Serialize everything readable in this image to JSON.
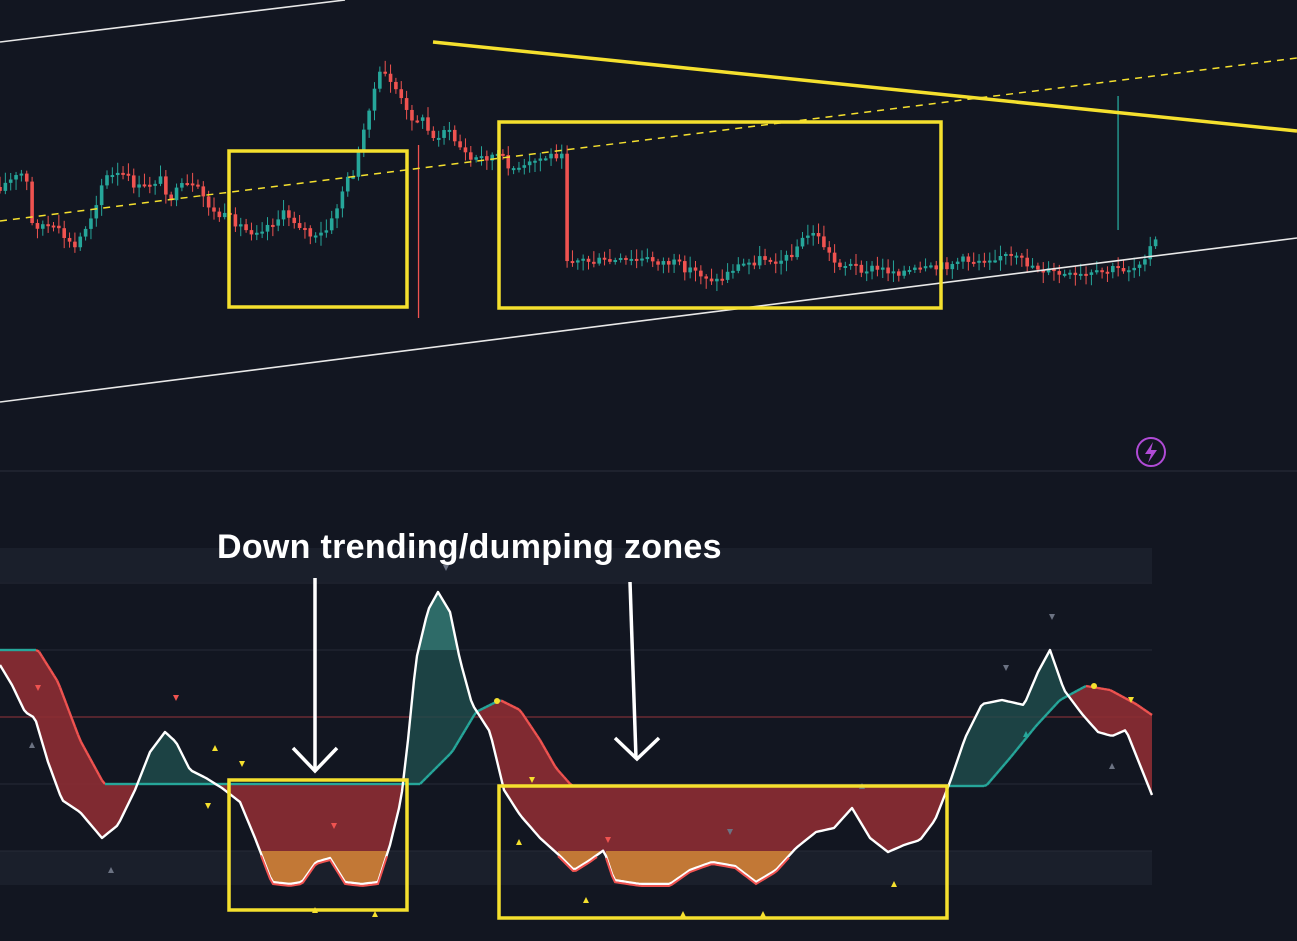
{
  "annotation": {
    "label": "Down trending/dumping zones"
  },
  "icons": {
    "alert": "lightning-bolt-icon"
  },
  "colors": {
    "background": "#121621",
    "bull": "#26a69a",
    "bear": "#ef5350",
    "highlight": "#f5e02e",
    "trendline_white": "#e8e8e8",
    "bearish_fill": "#8a2d33",
    "extreme_fill": "#c27836",
    "bullish_fill": "#1f4a4a",
    "oscillator_line": "#ffffff",
    "alert_icon": "#b04bd6"
  },
  "chart_data": [
    {
      "type": "candlestick",
      "title": "",
      "xlabel": "",
      "ylabel": "",
      "grid": false,
      "highlight_zones": [
        {
          "name": "down-trending-zone-1",
          "start_index": 54,
          "end_index": 95
        },
        {
          "name": "down-trending-zone-2",
          "start_index": 116,
          "end_index": 220
        }
      ],
      "trendlines": [
        {
          "name": "channel-upper-white",
          "style": "solid",
          "color": "#e8e8e8"
        },
        {
          "name": "channel-lower-white",
          "style": "solid",
          "color": "#e8e8e8"
        },
        {
          "name": "descending-resistance-yellow",
          "style": "solid",
          "color": "#f5e02e"
        },
        {
          "name": "midline-yellow",
          "style": "dashed",
          "color": "#f5e02e"
        }
      ]
    },
    {
      "type": "area",
      "title": "",
      "xlabel": "",
      "ylabel": "",
      "grid": false,
      "ylim": [
        -1.45,
        1.45
      ],
      "levels": [
        1,
        0.5,
        0,
        -0.5,
        -1
      ],
      "series": [
        {
          "kind": "oscillator",
          "color": "#ffffff"
        },
        {
          "kind": "signal",
          "bull_color": "#26a69a",
          "bear_color": "#ef5350"
        }
      ],
      "highlight_zones": [
        {
          "name": "dump-zone-1",
          "start_index": 54,
          "end_index": 95
        },
        {
          "name": "dump-zone-2",
          "start_index": 116,
          "end_index": 220
        }
      ]
    }
  ]
}
